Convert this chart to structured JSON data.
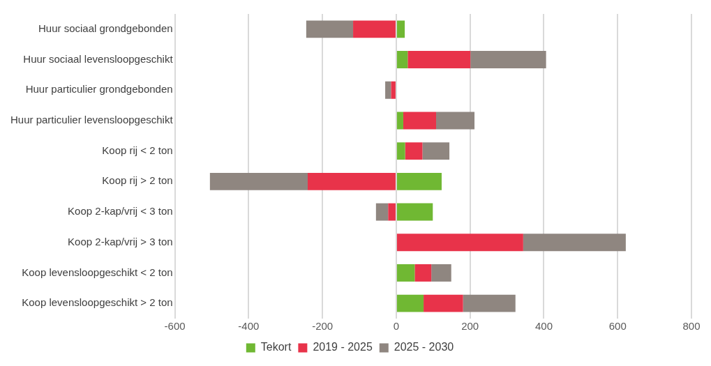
{
  "chart_data": {
    "type": "bar",
    "orientation": "horizontal",
    "stacked": true,
    "legend": "bottom",
    "grid": "x",
    "categories": [
      "Huur sociaal grondgebonden",
      "Huur sociaal levensloopgeschikt",
      "Huur particulier grondgebonden",
      "Huur particulier levensloopgeschikt",
      "Koop rij < 2 ton",
      "Koop rij > 2 ton",
      "Koop 2-kap/vrij < 3 ton",
      "Koop 2-kap/vrij > 3 ton",
      "Koop levensloopgeschikt < 2 ton",
      "Koop levensloopgeschikt > 2 ton"
    ],
    "series": [
      {
        "name": "Tekort",
        "color": "#70b833",
        "values": [
          23,
          31,
          0,
          19,
          24,
          123,
          99,
          0,
          50,
          74
        ]
      },
      {
        "name": "2019 - 2025",
        "color": "#e8334a",
        "values": [
          -117,
          170,
          -14,
          89,
          47,
          -240,
          -22,
          344,
          45,
          107
        ]
      },
      {
        "name": "2025 - 2030",
        "color": "#8f8680",
        "values": [
          -127,
          205,
          -16,
          104,
          73,
          -265,
          -33,
          278,
          54,
          142
        ]
      }
    ],
    "xlim": [
      -600,
      800
    ],
    "xticks": [
      -600,
      -400,
      -200,
      0,
      200,
      400,
      600,
      800
    ]
  }
}
